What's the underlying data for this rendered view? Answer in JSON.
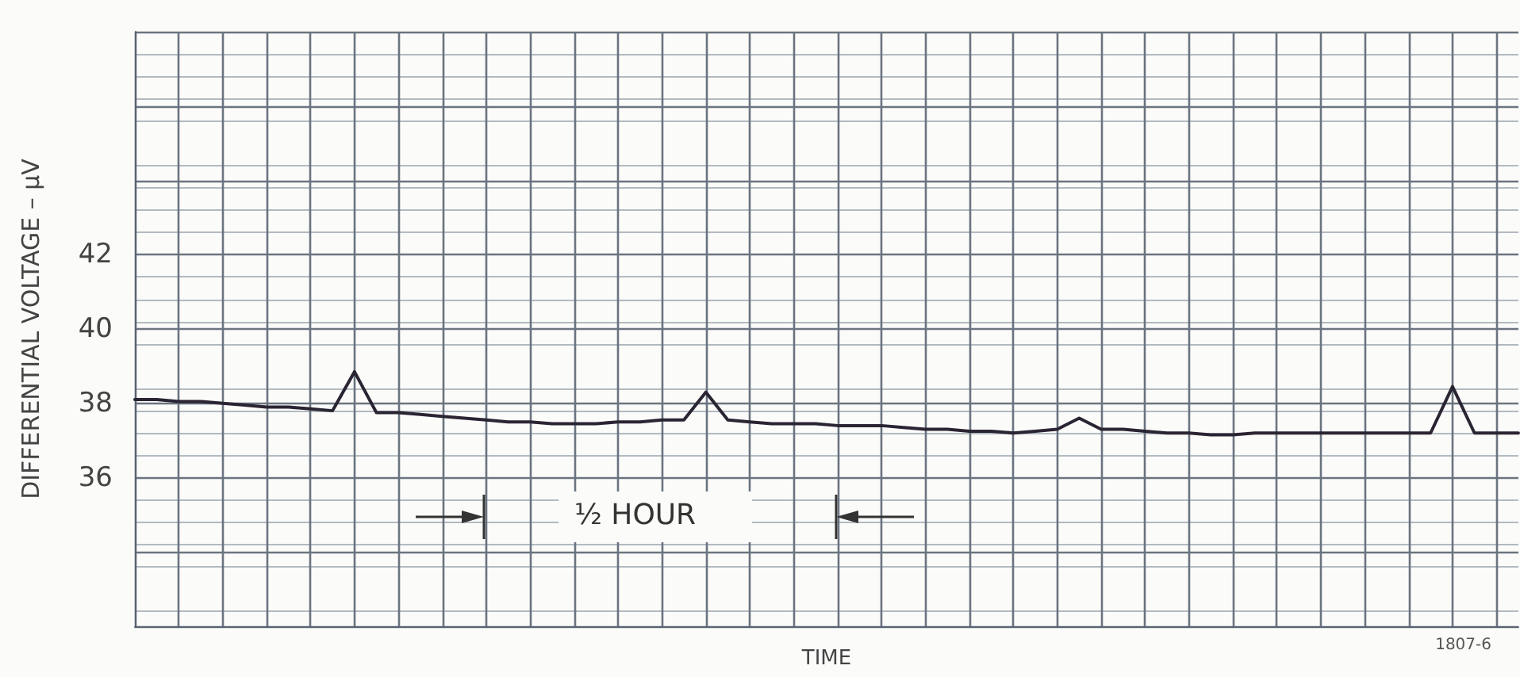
{
  "chart_data": {
    "type": "line",
    "xlabel": "TIME",
    "ylabel": "DIFFERENTIAL VOLTAGE – μV",
    "annotations": [
      "½ HOUR",
      "1807-6"
    ],
    "categories": [
      null,
      null,
      null,
      null,
      null,
      null,
      null,
      null,
      null,
      null,
      null,
      null,
      null,
      null,
      null,
      null,
      null,
      null,
      null,
      null,
      null,
      null,
      null,
      null,
      null,
      null,
      null,
      null,
      null,
      null,
      null,
      null,
      null,
      null,
      null,
      null,
      null,
      null,
      null,
      null,
      null,
      null,
      null,
      null,
      null,
      null,
      null,
      null,
      null,
      null,
      null,
      null,
      null,
      null,
      null,
      null,
      null,
      null,
      null,
      null,
      null,
      null,
      null,
      null
    ],
    "series": [
      {
        "color": "#2a2433",
        "values": [
          38.1,
          38.1,
          38.05,
          38.05,
          38.0,
          37.95,
          37.9,
          37.9,
          37.85,
          37.8,
          38.85,
          37.75,
          37.75,
          37.7,
          37.65,
          37.6,
          37.55,
          37.5,
          37.5,
          37.45,
          37.45,
          37.45,
          37.5,
          37.5,
          37.55,
          37.55,
          38.3,
          37.55,
          37.5,
          37.45,
          37.45,
          37.45,
          37.4,
          37.4,
          37.4,
          37.35,
          37.3,
          37.3,
          37.25,
          37.25,
          37.2,
          37.25,
          37.3,
          37.6,
          37.3,
          37.3,
          37.25,
          37.2,
          37.2,
          37.15,
          37.15,
          37.2,
          37.2,
          37.2,
          37.2,
          37.2,
          37.2,
          37.2,
          37.2,
          37.2,
          38.45,
          37.2,
          37.2,
          37.2
        ]
      }
    ],
    "ylim": [
      32,
      48
    ],
    "yticks": [
      {
        "value": 32,
        "label": null
      },
      {
        "value": 34,
        "label": null
      },
      36,
      38,
      40,
      42,
      {
        "value": 44,
        "label": null
      },
      {
        "value": 46,
        "label": null
      },
      {
        "value": 48,
        "label": null
      }
    ],
    "grid": true,
    "tick_labels": "y",
    "marker": "none"
  }
}
